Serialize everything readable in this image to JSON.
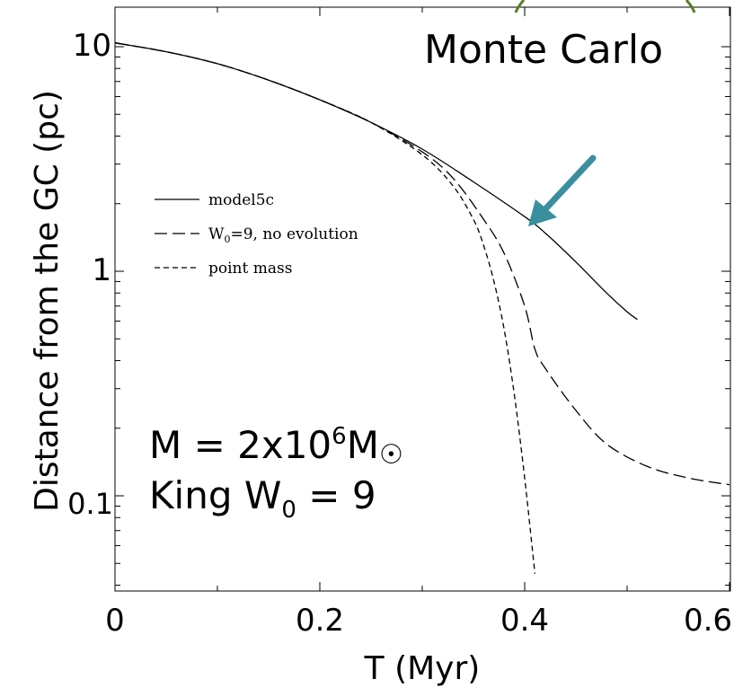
{
  "chart_data": {
    "type": "line",
    "xlabel": "T (Myr)",
    "ylabel": "Distance from the GC (pc)",
    "x_ticks": [
      "0",
      "0.2",
      "0.4",
      "0.6"
    ],
    "y_ticks": [
      "0.1",
      "1",
      "10"
    ],
    "xlim": [
      0,
      0.6
    ],
    "ylim": [
      0.045,
      14
    ],
    "y_scale": "log",
    "grid": false,
    "legend_position": "center-left",
    "series": [
      {
        "name": "model5c",
        "style": "solid",
        "x": [
          0,
          0.05,
          0.1,
          0.15,
          0.2,
          0.25,
          0.3,
          0.35,
          0.4,
          0.42,
          0.45,
          0.48,
          0.5,
          0.51
        ],
        "y": [
          10.4,
          9.5,
          8.4,
          7.1,
          5.8,
          4.6,
          3.5,
          2.5,
          1.75,
          1.48,
          1.1,
          0.8,
          0.66,
          0.61
        ]
      },
      {
        "name": "W0=9, no evolution",
        "name_parts": {
          "pre": "W",
          "sub": "0",
          "post": "=9, no evolution"
        },
        "style": "long-dash",
        "x": [
          0,
          0.05,
          0.1,
          0.15,
          0.2,
          0.25,
          0.3,
          0.33,
          0.36,
          0.38,
          0.4,
          0.41,
          0.42,
          0.45,
          0.48,
          0.52,
          0.56,
          0.6
        ],
        "y": [
          10.4,
          9.5,
          8.4,
          7.1,
          5.8,
          4.6,
          3.4,
          2.6,
          1.7,
          1.2,
          0.7,
          0.45,
          0.37,
          0.24,
          0.17,
          0.135,
          0.12,
          0.112
        ]
      },
      {
        "name": "point mass",
        "style": "short-dash",
        "x": [
          0,
          0.05,
          0.1,
          0.15,
          0.2,
          0.25,
          0.3,
          0.33,
          0.35,
          0.36,
          0.37,
          0.38,
          0.39,
          0.4,
          0.41
        ],
        "y": [
          10.4,
          9.5,
          8.4,
          7.1,
          5.8,
          4.6,
          3.3,
          2.4,
          1.7,
          1.3,
          0.9,
          0.55,
          0.28,
          0.12,
          0.045
        ]
      }
    ],
    "annotations": {
      "monte_carlo": "Monte Carlo",
      "mass_prefix": "M = 2x10",
      "mass_exp": "6",
      "mass_unit": "M",
      "sun_symbol": "☉",
      "king_prefix": "King W",
      "king_sub": "0",
      "king_suffix": " = 9"
    },
    "colors": {
      "monte_carlo": "#5a7d2a",
      "arrow": "#3a8f9f",
      "annotation": "#5b3516",
      "lines": "#000000"
    }
  }
}
